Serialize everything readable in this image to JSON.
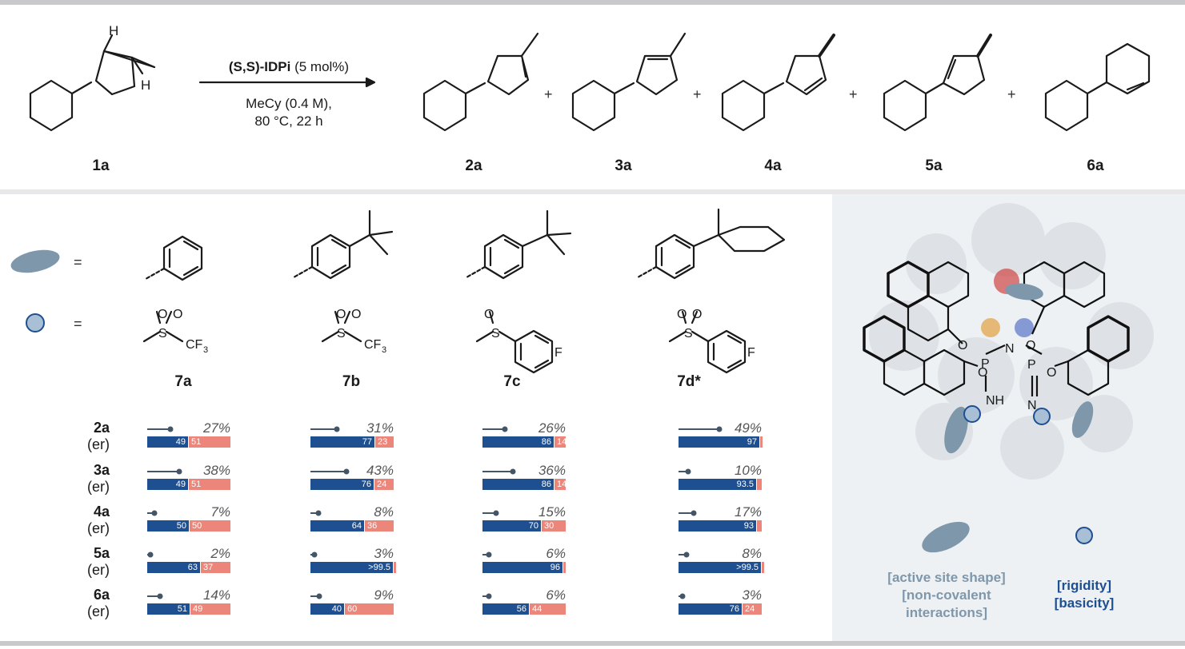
{
  "scheme": {
    "reactant": "1a",
    "catalyst_label_bold": "(S,S)-IDPi",
    "catalyst_loading": "(5 mol%)",
    "condition_line1": "MeCy (0.4 M),",
    "condition_line2": "80 °C, 22 h",
    "products": [
      "2a",
      "3a",
      "4a",
      "5a",
      "6a"
    ],
    "plus": "+"
  },
  "legend_rows": {
    "eq": "="
  },
  "catalysts": [
    {
      "label": "7a"
    },
    {
      "label": "7b"
    },
    {
      "label": "7c"
    },
    {
      "label": "7d*"
    }
  ],
  "row_labels": [
    {
      "product": "2a",
      "er": "(er)"
    },
    {
      "product": "3a",
      "er": "(er)"
    },
    {
      "product": "4a",
      "er": "(er)"
    },
    {
      "product": "5a",
      "er": "(er)"
    },
    {
      "product": "6a",
      "er": "(er)"
    }
  ],
  "results": [
    [
      {
        "pct": "27%",
        "yield": 27,
        "er1": "49",
        "er2": "51",
        "f": 49
      },
      {
        "pct": "38%",
        "yield": 38,
        "er1": "49",
        "er2": "51",
        "f": 49
      },
      {
        "pct": "7%",
        "yield": 7,
        "er1": "50",
        "er2": "50",
        "f": 50
      },
      {
        "pct": "2%",
        "yield": 2,
        "er1": "63",
        "er2": "37",
        "f": 63
      },
      {
        "pct": "14%",
        "yield": 14,
        "er1": "51",
        "er2": "49",
        "f": 51
      }
    ],
    [
      {
        "pct": "31%",
        "yield": 31,
        "er1": "77",
        "er2": "23",
        "f": 77
      },
      {
        "pct": "43%",
        "yield": 43,
        "er1": "76",
        "er2": "24",
        "f": 76
      },
      {
        "pct": "8%",
        "yield": 8,
        "er1": "64",
        "er2": "36",
        "f": 64
      },
      {
        "pct": "3%",
        "yield": 3,
        "er1": ">99.5",
        "er2": "",
        "f": 99.5
      },
      {
        "pct": "9%",
        "yield": 9,
        "er1": "40",
        "er2": "60",
        "f": 40
      }
    ],
    [
      {
        "pct": "26%",
        "yield": 26,
        "er1": "86",
        "er2": "14",
        "f": 86
      },
      {
        "pct": "36%",
        "yield": 36,
        "er1": "86",
        "er2": "14",
        "f": 86
      },
      {
        "pct": "15%",
        "yield": 15,
        "er1": "70",
        "er2": "30",
        "f": 70
      },
      {
        "pct": "6%",
        "yield": 6,
        "er1": "96",
        "er2": "",
        "f": 96
      },
      {
        "pct": "6%",
        "yield": 6,
        "er1": "56",
        "er2": "44",
        "f": 56
      }
    ],
    [
      {
        "pct": "49%",
        "yield": 49,
        "er1": "97",
        "er2": "",
        "f": 97
      },
      {
        "pct": "10%",
        "yield": 10,
        "er1": "93.5",
        "er2": "",
        "f": 93.5
      },
      {
        "pct": "17%",
        "yield": 17,
        "er1": "93",
        "er2": "",
        "f": 93
      },
      {
        "pct": "8%",
        "yield": 8,
        "er1": ">99.5",
        "er2": "",
        "f": 99.5
      },
      {
        "pct": "3%",
        "yield": 3,
        "er1": "76",
        "er2": "24",
        "f": 76
      }
    ]
  ],
  "catalyst_structure": {
    "atoms": [
      "O",
      "P",
      "N",
      "P",
      "O",
      "O",
      "O",
      "NH",
      "N"
    ]
  },
  "right_legend": {
    "shape_text": [
      "[active site shape]",
      "[non-covalent",
      "interactions]"
    ],
    "circle_text": [
      "[rigidity]",
      "[basicity]"
    ]
  },
  "colors": {
    "er_major": "#1d4f91",
    "er_minor": "#ec857a",
    "ellipse": "#7f97ab",
    "circle_fill": "#a9bfd6",
    "circle_stroke": "#1d4f91",
    "legend_gray": "#7f97ab",
    "legend_blue": "#1d4f91"
  }
}
